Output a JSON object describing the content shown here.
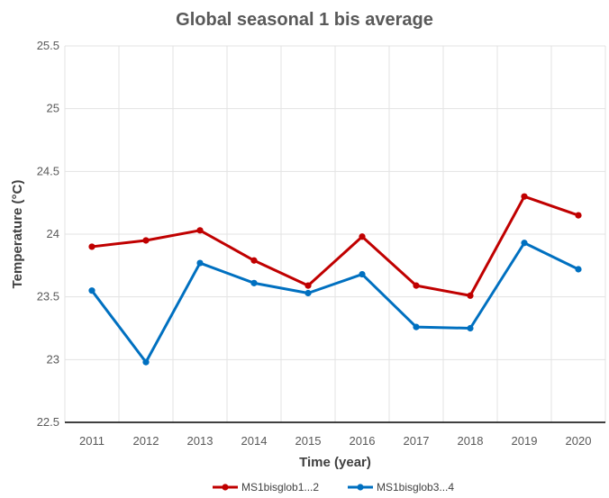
{
  "chart_data": {
    "type": "line",
    "title": "Global seasonal 1 bis average",
    "xlabel": "Time (year)",
    "ylabel": "Temperature (°C)",
    "categories": [
      "2011",
      "2012",
      "2013",
      "2014",
      "2015",
      "2016",
      "2017",
      "2018",
      "2019",
      "2020"
    ],
    "ylim": [
      22.5,
      25.5
    ],
    "yticks": [
      "22.5",
      "23",
      "23.5",
      "24",
      "24.5",
      "25",
      "25.5"
    ],
    "grid": true,
    "legend_position": "bottom",
    "series": [
      {
        "name": "MS1bisglob1...2",
        "color": "#c00000",
        "values": [
          23.9,
          23.95,
          24.03,
          23.79,
          23.59,
          23.98,
          23.59,
          23.51,
          24.3,
          24.15
        ]
      },
      {
        "name": "MS1bisglob3...4",
        "color": "#0070c0",
        "values": [
          23.55,
          22.98,
          23.77,
          23.61,
          23.53,
          23.68,
          23.26,
          23.25,
          23.93,
          23.72
        ]
      }
    ]
  }
}
